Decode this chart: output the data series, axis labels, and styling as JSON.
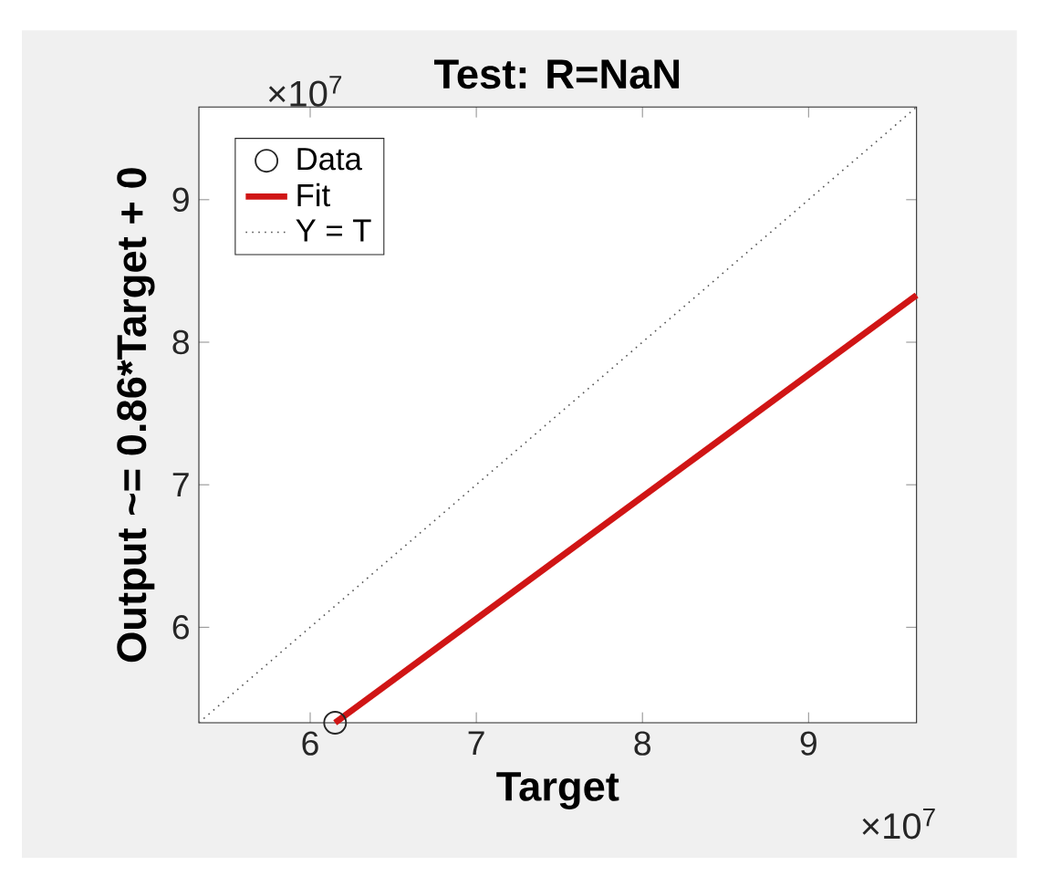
{
  "chart_data": {
    "type": "scatter",
    "title": "Test: R=NaN",
    "xlabel": "Target",
    "ylabel": "Output ~= 0.86*Target + 0",
    "xlim": [
      5.33,
      9.65
    ],
    "ylim": [
      5.33,
      9.65
    ],
    "xticks": [
      6,
      7,
      8,
      9
    ],
    "yticks": [
      6,
      7,
      8,
      9
    ],
    "series": [
      {
        "name": "Data",
        "marker": "circle",
        "color": "#262626",
        "x": [
          6.15
        ],
        "values": [
          5.33
        ]
      },
      {
        "name": "Fit",
        "type": "line",
        "marker": "none",
        "line_style": "solid",
        "color": "#d01515",
        "x": [
          6.15,
          9.65
        ],
        "values": [
          5.33,
          8.33
        ]
      },
      {
        "name": "Y = T",
        "type": "line",
        "marker": "none",
        "line_style": "dotted",
        "color": "#555555",
        "x": [
          5.33,
          9.65
        ],
        "values": [
          5.33,
          9.65
        ]
      }
    ],
    "legend": "top left",
    "grid": false,
    "annotations": [
      "×10$^{7}$",
      "×10$^{7}$"
    ]
  }
}
